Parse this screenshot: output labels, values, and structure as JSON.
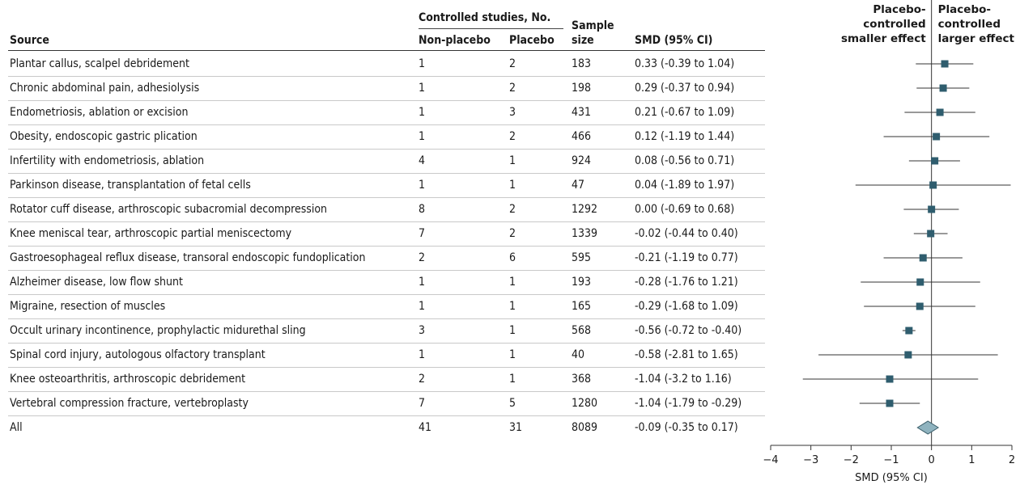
{
  "table": {
    "header": {
      "source": "Source",
      "controlled_group": "Controlled studies, No.",
      "non_placebo": "Non-placebo",
      "placebo": "Placebo",
      "sample_line1": "Sample",
      "sample_line2": "size",
      "smd": "SMD (95% CI)"
    },
    "rows": [
      {
        "source": "Plantar callus, scalpel debridement",
        "non_placebo": "1",
        "placebo": "2",
        "sample": "183",
        "smd_text": "0.33 (-0.39 to 1.04)"
      },
      {
        "source": "Chronic abdominal pain, adhesiolysis",
        "non_placebo": "1",
        "placebo": "2",
        "sample": "198",
        "smd_text": "0.29 (-0.37 to 0.94)"
      },
      {
        "source": "Endometriosis, ablation or excision",
        "non_placebo": "1",
        "placebo": "3",
        "sample": "431",
        "smd_text": "0.21 (-0.67 to 1.09)"
      },
      {
        "source": "Obesity, endoscopic gastric plication",
        "non_placebo": "1",
        "placebo": "2",
        "sample": "466",
        "smd_text": "0.12 (-1.19 to 1.44)"
      },
      {
        "source": "Infertility with endometriosis, ablation",
        "non_placebo": "4",
        "placebo": "1",
        "sample": "924",
        "smd_text": "0.08 (-0.56 to 0.71)"
      },
      {
        "source": "Parkinson disease, transplantation of fetal cells",
        "non_placebo": "1",
        "placebo": "1",
        "sample": "47",
        "smd_text": "0.04 (-1.89 to 1.97)"
      },
      {
        "source": "Rotator cuff disease, arthroscopic subacromial decompression",
        "non_placebo": "8",
        "placebo": "2",
        "sample": "1292",
        "smd_text": "0.00 (-0.69 to 0.68)"
      },
      {
        "source": "Knee meniscal tear, arthroscopic partial meniscectomy",
        "non_placebo": "7",
        "placebo": "2",
        "sample": "1339",
        "smd_text": "-0.02 (-0.44 to 0.40)"
      },
      {
        "source": "Gastroesophageal reflux disease, transoral endoscopic fundoplication",
        "non_placebo": "2",
        "placebo": "6",
        "sample": "595",
        "smd_text": "-0.21 (-1.19 to 0.77)"
      },
      {
        "source": "Alzheimer disease, low flow shunt",
        "non_placebo": "1",
        "placebo": "1",
        "sample": "193",
        "smd_text": "-0.28 (-1.76 to 1.21)"
      },
      {
        "source": "Migraine, resection of muscles",
        "non_placebo": "1",
        "placebo": "1",
        "sample": "165",
        "smd_text": "-0.29 (-1.68 to 1.09)"
      },
      {
        "source": "Occult urinary incontinence, prophylactic midurethal sling",
        "non_placebo": "3",
        "placebo": "1",
        "sample": "568",
        "smd_text": "-0.56 (-0.72 to -0.40)"
      },
      {
        "source": "Spinal cord injury, autologous olfactory transplant",
        "non_placebo": "1",
        "placebo": "1",
        "sample": "40",
        "smd_text": "-0.58 (-2.81 to 1.65)"
      },
      {
        "source": "Knee osteoarthritis, arthroscopic debridement",
        "non_placebo": "2",
        "placebo": "1",
        "sample": "368",
        "smd_text": "-1.04 (-3.2 to 1.16)"
      },
      {
        "source": "Vertebral compression fracture, vertebroplasty",
        "non_placebo": "7",
        "placebo": "5",
        "sample": "1280",
        "smd_text": "-1.04 (-1.79 to -0.29)"
      },
      {
        "source": "All",
        "non_placebo": "41",
        "placebo": "31",
        "sample": "8089",
        "smd_text": "-0.09 (-0.35 to 0.17)"
      }
    ]
  },
  "chart_data": {
    "type": "scatter",
    "subtype": "forest-plot",
    "xlabel": "SMD (95% CI)",
    "xlim": [
      -4,
      2
    ],
    "xticks": [
      -4,
      -3,
      -2,
      -1,
      0,
      1,
      2
    ],
    "xtick_labels": [
      "−4",
      "−3",
      "−2",
      "−1",
      "0",
      "1",
      "2"
    ],
    "reference_line": 0,
    "left_header": [
      "Placebo-",
      "controlled",
      "smaller effect"
    ],
    "right_header": [
      "Placebo-",
      "controlled",
      "larger effect"
    ],
    "estimates": [
      {
        "point": 0.33,
        "low": -0.39,
        "high": 1.04
      },
      {
        "point": 0.29,
        "low": -0.37,
        "high": 0.94
      },
      {
        "point": 0.21,
        "low": -0.67,
        "high": 1.09
      },
      {
        "point": 0.12,
        "low": -1.19,
        "high": 1.44
      },
      {
        "point": 0.08,
        "low": -0.56,
        "high": 0.71
      },
      {
        "point": 0.04,
        "low": -1.89,
        "high": 1.97
      },
      {
        "point": 0.0,
        "low": -0.69,
        "high": 0.68
      },
      {
        "point": -0.02,
        "low": -0.44,
        "high": 0.4
      },
      {
        "point": -0.21,
        "low": -1.19,
        "high": 0.77
      },
      {
        "point": -0.28,
        "low": -1.76,
        "high": 1.21
      },
      {
        "point": -0.29,
        "low": -1.68,
        "high": 1.09
      },
      {
        "point": -0.56,
        "low": -0.72,
        "high": -0.4
      },
      {
        "point": -0.58,
        "low": -2.81,
        "high": 1.65
      },
      {
        "point": -1.04,
        "low": -3.2,
        "high": 1.16
      },
      {
        "point": -1.04,
        "low": -1.79,
        "high": -0.29
      }
    ],
    "overall": {
      "point": -0.09,
      "low": -0.35,
      "high": 0.17
    },
    "colors": {
      "marker": "#2f5d6e",
      "diamond_fill": "#8fb3bf",
      "diamond_stroke": "#3c5f6b",
      "line": "#333333"
    }
  }
}
